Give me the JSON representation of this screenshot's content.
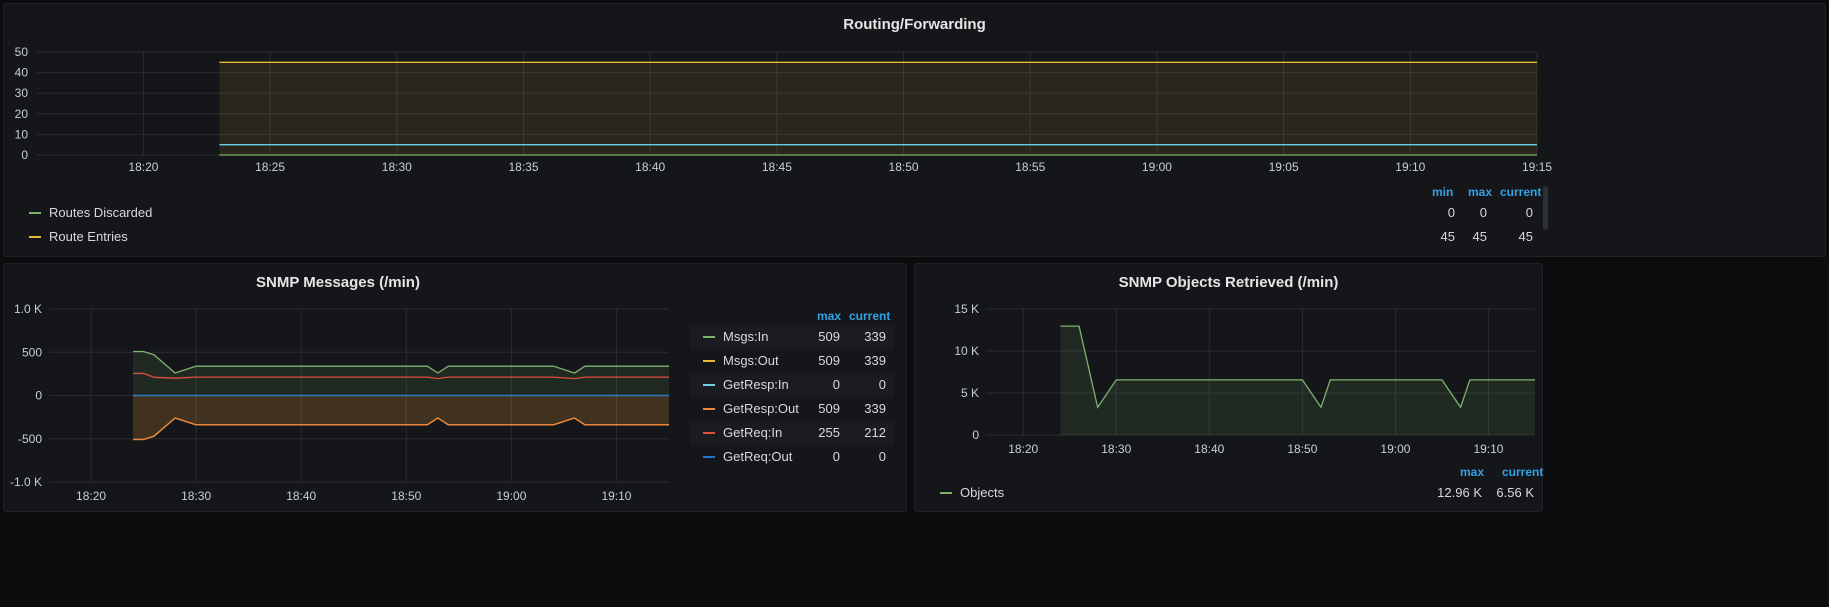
{
  "panels": {
    "routing": {
      "title": "Routing/Forwarding",
      "legend_headers": {
        "min": "min",
        "max": "max",
        "current": "current"
      },
      "legend": [
        {
          "name": "Routes Discarded",
          "color": "#7eb26d",
          "min": "0",
          "max": "0",
          "current": "0"
        },
        {
          "name": "Route Entries",
          "color": "#eab839",
          "min": "45",
          "max": "45",
          "current": "45"
        }
      ]
    },
    "snmp_messages": {
      "title": "SNMP Messages (/min)",
      "legend_headers": {
        "max": "max",
        "current": "current"
      },
      "legend": [
        {
          "name": "Msgs:In",
          "color": "#7eb26d",
          "max": "509",
          "current": "339"
        },
        {
          "name": "Msgs:Out",
          "color": "#eab839",
          "max": "509",
          "current": "339"
        },
        {
          "name": "GetResp:In",
          "color": "#6ed0e0",
          "max": "0",
          "current": "0"
        },
        {
          "name": "GetResp:Out",
          "color": "#ef843c",
          "max": "509",
          "current": "339"
        },
        {
          "name": "GetReq:In",
          "color": "#e24d42",
          "max": "255",
          "current": "212"
        },
        {
          "name": "GetReq:Out",
          "color": "#1f78c1",
          "max": "0",
          "current": "0"
        }
      ]
    },
    "snmp_objects": {
      "title": "SNMP Objects Retrieved (/min)",
      "legend_headers": {
        "max": "max",
        "current": "current"
      },
      "legend": [
        {
          "name": "Objects",
          "color": "#7eb26d",
          "max": "12.96 K",
          "current": "6.56 K"
        }
      ]
    }
  },
  "chart_data": [
    {
      "type": "area",
      "title": "Routing/Forwarding",
      "x_ticks": [
        "18:20",
        "18:25",
        "18:30",
        "18:35",
        "18:40",
        "18:45",
        "18:50",
        "18:55",
        "19:00",
        "19:05",
        "19:10",
        "19:15"
      ],
      "y_ticks": [
        "0",
        "10",
        "20",
        "30",
        "40",
        "50"
      ],
      "ylim": [
        0,
        50
      ],
      "xlim": [
        "18:15:48",
        "19:15"
      ],
      "series": [
        {
          "name": "Route Entries",
          "points": [
            [
              "18:23",
              45
            ],
            [
              "19:15",
              45
            ]
          ]
        },
        {
          "name": "Routes Discarded",
          "points": [
            [
              "18:23",
              0
            ],
            [
              "19:15",
              0
            ]
          ]
        },
        {
          "points": [
            [
              "18:23",
              5
            ],
            [
              "19:15",
              5
            ]
          ]
        }
      ]
    },
    {
      "type": "area",
      "title": "SNMP Messages (/min)",
      "x_ticks": [
        "18:20",
        "18:30",
        "18:40",
        "18:50",
        "19:00",
        "19:10"
      ],
      "y_ticks": [
        "-1.0 K",
        "-500",
        "0",
        "500",
        "1.0 K"
      ],
      "ylim": [
        -1000,
        1000
      ],
      "xlim": [
        "18:16",
        "19:15"
      ],
      "series": [
        {
          "name": "Msgs:In",
          "points": [
            [
              "18:24",
              509
            ],
            [
              "18:25",
              509
            ],
            [
              "18:26",
              470
            ],
            [
              "18:28",
              260
            ],
            [
              "18:30",
              339
            ],
            [
              "18:52",
              339
            ],
            [
              "18:53",
              260
            ],
            [
              "18:54",
              339
            ],
            [
              "19:04",
              339
            ],
            [
              "19:06",
              260
            ],
            [
              "19:07",
              339
            ],
            [
              "19:15",
              339
            ]
          ]
        },
        {
          "name": "Msgs:Out",
          "points": [
            [
              "18:24",
              -509
            ],
            [
              "18:25",
              -509
            ],
            [
              "18:26",
              -470
            ],
            [
              "18:28",
              -260
            ],
            [
              "18:30",
              -339
            ],
            [
              "18:52",
              -339
            ],
            [
              "18:53",
              -260
            ],
            [
              "18:54",
              -339
            ],
            [
              "19:04",
              -339
            ],
            [
              "19:06",
              -260
            ],
            [
              "19:07",
              -339
            ],
            [
              "19:15",
              -339
            ]
          ]
        },
        {
          "name": "GetResp:In",
          "points": [
            [
              "18:24",
              0
            ],
            [
              "19:15",
              0
            ]
          ]
        },
        {
          "name": "GetReq:In",
          "points": [
            [
              "18:24",
              255
            ],
            [
              "18:25",
              255
            ],
            [
              "18:26",
              210
            ],
            [
              "18:28",
              200
            ],
            [
              "18:30",
              212
            ],
            [
              "18:52",
              212
            ],
            [
              "18:53",
              195
            ],
            [
              "18:54",
              212
            ],
            [
              "19:04",
              212
            ],
            [
              "19:06",
              195
            ],
            [
              "19:07",
              212
            ],
            [
              "19:15",
              212
            ]
          ]
        },
        {
          "name": "GetReq:Out",
          "points": [
            [
              "18:24",
              0
            ],
            [
              "19:15",
              0
            ]
          ]
        }
      ]
    },
    {
      "type": "area",
      "title": "SNMP Objects Retrieved (/min)",
      "x_ticks": [
        "18:20",
        "18:30",
        "18:40",
        "18:50",
        "19:00",
        "19:10"
      ],
      "y_ticks": [
        "0",
        "5 K",
        "10 K",
        "15 K"
      ],
      "ylim": [
        0,
        15000
      ],
      "xlim": [
        "18:16",
        "19:15"
      ],
      "series": [
        {
          "name": "Objects",
          "points": [
            [
              "18:24",
              12960
            ],
            [
              "18:26",
              12960
            ],
            [
              "18:28",
              3300
            ],
            [
              "18:30",
              6560
            ],
            [
              "18:50",
              6560
            ],
            [
              "18:52",
              3300
            ],
            [
              "18:53",
              6560
            ],
            [
              "19:05",
              6560
            ],
            [
              "19:07",
              3300
            ],
            [
              "19:08",
              6560
            ],
            [
              "19:15",
              6560
            ]
          ]
        }
      ]
    }
  ]
}
